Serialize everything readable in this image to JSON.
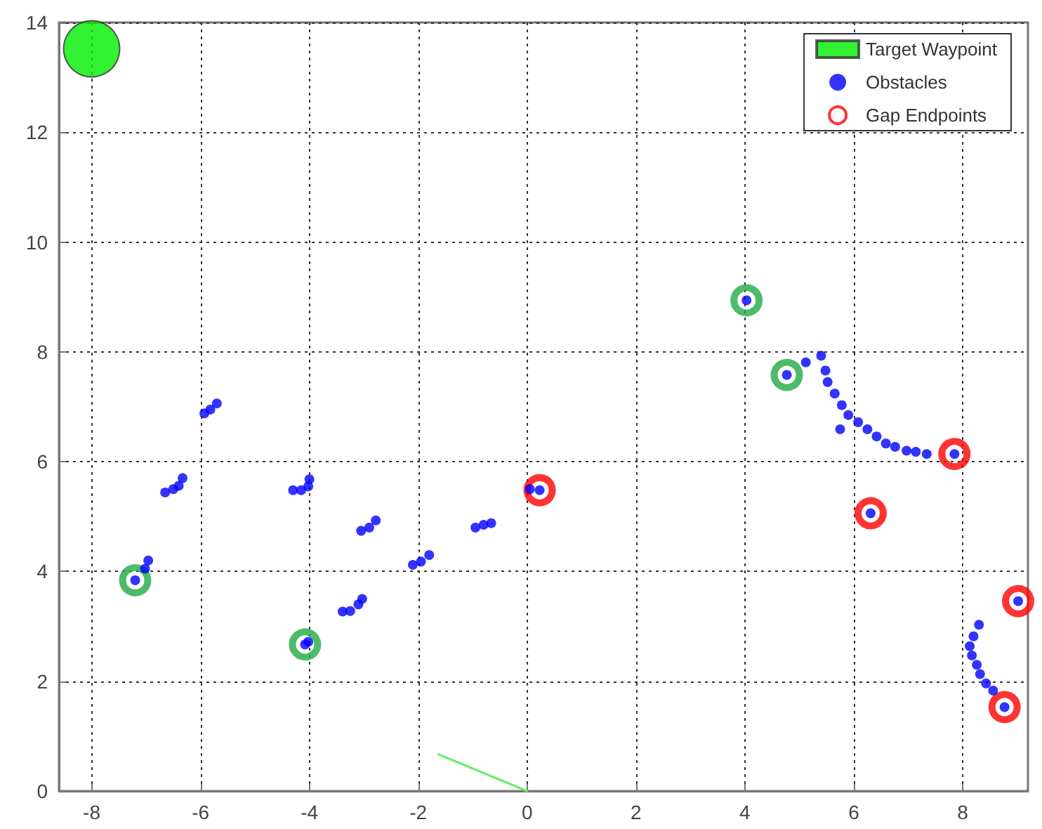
{
  "chart_data": {
    "type": "scatter",
    "xlim": [
      -8.6,
      9.2
    ],
    "ylim": [
      0,
      14
    ],
    "xticks": [
      -8,
      -6,
      -4,
      -2,
      0,
      2,
      4,
      6,
      8
    ],
    "yticks": [
      0,
      2,
      4,
      6,
      8,
      10,
      12,
      14
    ],
    "grid": true,
    "legend": "top right",
    "marker": "circle",
    "series": [
      {
        "name": "Target Waypoint",
        "color": "#00ee00",
        "x": [
          -8
        ],
        "values": [
          13.52
        ]
      },
      {
        "name": "Obstacles",
        "color": "#0000ff",
        "x": [
          -5.93,
          -5.82,
          -5.7,
          -6.65,
          -6.5,
          -6.4,
          -6.33,
          -6.96,
          -7.02,
          -7.2,
          -4.3,
          -4.15,
          -4.02,
          -4.0,
          -4.08,
          -4.02,
          -3.39,
          -3.25,
          -3.1,
          -3.03,
          -3.05,
          -2.9,
          -2.78,
          -2.1,
          -1.95,
          -1.8,
          -0.95,
          -0.8,
          -0.66,
          0.05,
          0.23,
          4.03,
          4.77,
          5.12,
          5.4,
          5.48,
          5.52,
          5.65,
          5.78,
          5.9,
          6.08,
          6.25,
          6.42,
          6.59,
          6.76,
          6.97,
          7.14,
          7.34,
          7.85,
          5.75,
          6.31,
          9.02,
          8.3,
          8.2,
          8.13,
          8.17,
          8.26,
          8.32,
          8.43,
          8.56,
          8.77
        ],
        "values": [
          6.88,
          6.95,
          7.06,
          5.44,
          5.5,
          5.56,
          5.7,
          4.2,
          4.05,
          3.84,
          5.48,
          5.48,
          5.55,
          5.68,
          2.67,
          2.72,
          3.27,
          3.28,
          3.4,
          3.5,
          4.74,
          4.8,
          4.93,
          4.12,
          4.18,
          4.3,
          4.8,
          4.85,
          4.88,
          5.5,
          5.48,
          8.94,
          7.58,
          7.81,
          7.93,
          7.66,
          7.45,
          7.24,
          7.03,
          6.85,
          6.72,
          6.59,
          6.46,
          6.33,
          6.27,
          6.2,
          6.18,
          6.14,
          6.14,
          6.59,
          5.06,
          3.46,
          3.03,
          2.82,
          2.64,
          2.47,
          2.3,
          2.13,
          1.96,
          1.83,
          1.53
        ]
      },
      {
        "name": "Gap Endpoints",
        "color": "#ff0000",
        "x": [
          0.23,
          7.85,
          6.31,
          9.02,
          8.77
        ],
        "values": [
          5.48,
          6.14,
          5.06,
          3.46,
          1.53
        ]
      },
      {
        "color": "#22aa44",
        "x": [
          -7.2,
          -4.08,
          4.03,
          4.77
        ],
        "values": [
          3.84,
          2.67,
          8.94,
          7.58
        ]
      },
      {
        "type": "line",
        "color": "#66ee66",
        "marker": "none",
        "x": [
          0,
          -1.63
        ],
        "values": [
          0,
          0.67
        ]
      }
    ]
  }
}
